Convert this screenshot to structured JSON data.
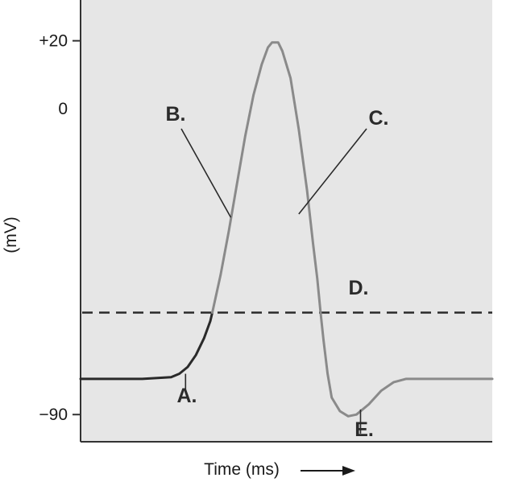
{
  "chart_data": {
    "type": "line",
    "xlabel": "Time (ms)",
    "ylabel": "(mV)",
    "y_ticks": [
      {
        "value": 20,
        "label": "+20",
        "show_mark": true
      },
      {
        "value": 0,
        "label": "0",
        "show_mark": false
      },
      {
        "value": -90,
        "label": "−90",
        "show_mark": true
      }
    ],
    "ylim": [
      -98,
      32
    ],
    "xlim": [
      0,
      100
    ],
    "grid": false,
    "threshold": {
      "value": -60,
      "style": "dashed"
    },
    "series": [
      {
        "segment": "resting-and-depolarization",
        "color": "#2a2a2a",
        "points": [
          [
            0,
            -79.5
          ],
          [
            15,
            -79.5
          ],
          [
            22,
            -79
          ],
          [
            24,
            -78
          ],
          [
            26,
            -76
          ],
          [
            28,
            -72.5
          ],
          [
            30,
            -67.5
          ],
          [
            31.5,
            -62.5
          ],
          [
            32,
            -60
          ]
        ]
      },
      {
        "segment": "upstroke-peak-repolarization-hyperpolarization",
        "color": "#8a8a8a",
        "points": [
          [
            32,
            -60
          ],
          [
            34,
            -49
          ],
          [
            36,
            -36
          ],
          [
            38,
            -22
          ],
          [
            40,
            -8
          ],
          [
            42,
            4
          ],
          [
            44,
            13
          ],
          [
            45.5,
            18
          ],
          [
            46.5,
            19.5
          ],
          [
            48,
            19.5
          ],
          [
            49,
            17
          ],
          [
            51,
            9
          ],
          [
            53,
            -6
          ],
          [
            55,
            -24
          ],
          [
            56.5,
            -40
          ],
          [
            57.5,
            -50
          ],
          [
            58.3,
            -60
          ],
          [
            59,
            -68
          ],
          [
            60,
            -78
          ],
          [
            61,
            -85
          ],
          [
            63,
            -89
          ],
          [
            65,
            -90.5
          ],
          [
            67,
            -90
          ],
          [
            70,
            -87
          ],
          [
            73,
            -83
          ],
          [
            76,
            -80.5
          ],
          [
            79,
            -79.5
          ],
          [
            100,
            -79.5
          ]
        ]
      }
    ],
    "annotations": [
      {
        "text": "A.",
        "point": [
          25.5,
          -78
        ]
      },
      {
        "text": "B.",
        "point": [
          36.5,
          -32
        ]
      },
      {
        "text": "C.",
        "point": [
          53,
          -31
        ]
      },
      {
        "text": "D.",
        "point": [
          67,
          -60
        ]
      },
      {
        "text": "E.",
        "point": [
          68,
          -88.5
        ]
      }
    ],
    "x_arrow": true
  }
}
